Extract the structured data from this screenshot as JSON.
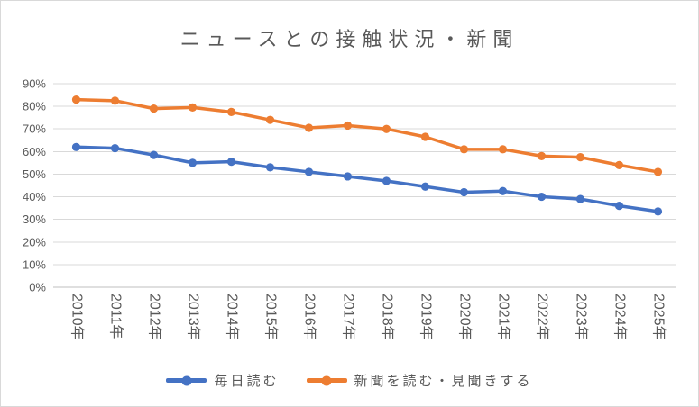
{
  "chart_data": {
    "type": "line",
    "title": "ニュースとの接触状況・新聞",
    "categories": [
      "2010年",
      "2011年",
      "2012年",
      "2013年",
      "2014年",
      "2015年",
      "2016年",
      "2017年",
      "2018年",
      "2019年",
      "2020年",
      "2021年",
      "2022年",
      "2023年",
      "2024年",
      "2025年"
    ],
    "series": [
      {
        "name": "毎日読む",
        "color": "#4472C4",
        "values": [
          62,
          61.5,
          58.5,
          55,
          55.5,
          53,
          51,
          49,
          47,
          44.5,
          42,
          42.5,
          40,
          39,
          36,
          33.5
        ]
      },
      {
        "name": "新聞を読む・見聞きする",
        "color": "#ED7D31",
        "values": [
          83,
          82.5,
          79,
          79.5,
          77.5,
          74,
          70.5,
          71.5,
          70,
          66.5,
          61,
          61,
          58,
          57.5,
          54,
          51
        ]
      }
    ],
    "xlabel": "",
    "ylabel": "",
    "ylim": [
      0,
      90
    ],
    "y_tick_step": 10,
    "y_tick_labels": [
      "0%",
      "10%",
      "20%",
      "30%",
      "40%",
      "50%",
      "60%",
      "70%",
      "80%",
      "90%"
    ],
    "grid": true,
    "legend_position": "bottom",
    "colors": {
      "text": "#595959",
      "gridline": "#D9D9D9",
      "axis_line": "#BFBFBF",
      "background": "#FFFFFF",
      "border": "#D9D9D9"
    }
  }
}
